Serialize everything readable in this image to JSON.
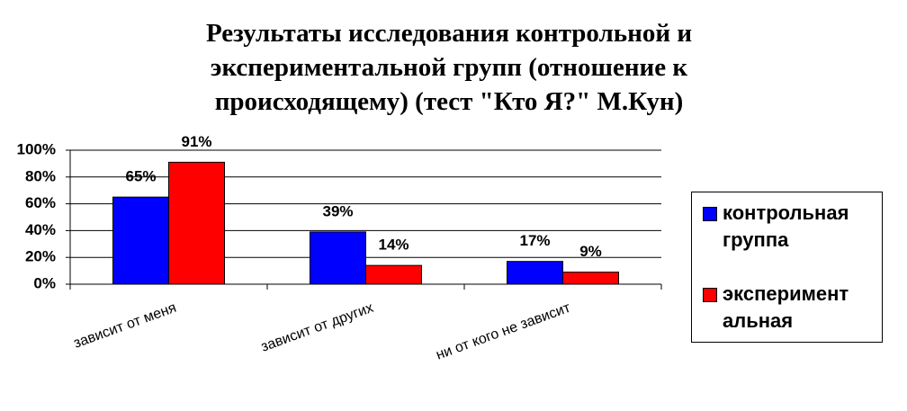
{
  "chart_data": {
    "type": "bar",
    "title": [
      "Результаты исследования контрольной и",
      "экспериментальной групп (отношение к",
      "происходящему) (тест \"Кто Я?\" М.Кун)"
    ],
    "categories": [
      "зависит от меня",
      "зависит от других",
      "ни от кого не зависит"
    ],
    "series": [
      {
        "name": "контрольная группа",
        "color": "#0000ff",
        "values": [
          65,
          39,
          17
        ],
        "value_labels": [
          "65%",
          "39%",
          "17%"
        ]
      },
      {
        "name": "экспериментальная",
        "color": "#ff0000",
        "values": [
          91,
          14,
          9
        ],
        "value_labels": [
          "91%",
          "14%",
          "9%"
        ]
      }
    ],
    "ylim": [
      0,
      100
    ],
    "yticks": [
      {
        "value": 0,
        "label": "0%"
      },
      {
        "value": 20,
        "label": "20%"
      },
      {
        "value": 40,
        "label": "40%"
      },
      {
        "value": 60,
        "label": "60%"
      },
      {
        "value": 80,
        "label": "80%"
      },
      {
        "value": 100,
        "label": "100%"
      }
    ],
    "grid": true,
    "legend": "right"
  }
}
